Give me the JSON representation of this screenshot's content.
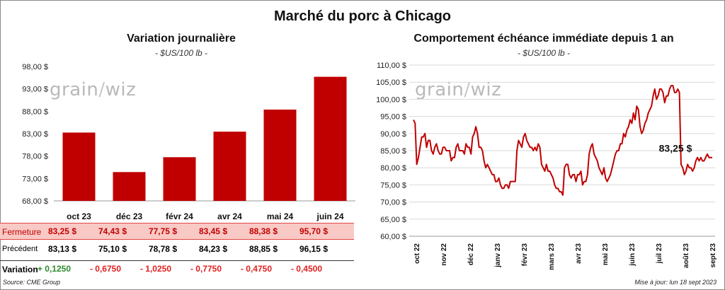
{
  "title": "Marché du porc à Chicago",
  "left": {
    "title": "Variation journalière",
    "unit": "- $US/100 lb -",
    "watermark": "grainwiz"
  },
  "right": {
    "title": "Comportement échéance immédiate depuis 1 an",
    "unit": "- $US/100 lb -",
    "watermark": "grainwiz",
    "last_label": "83,25 $"
  },
  "table": {
    "rows": [
      {
        "label": "Fermeture",
        "values": [
          "83,25 $",
          "74,43 $",
          "77,75 $",
          "83,45 $",
          "88,38 $",
          "95,70 $"
        ]
      },
      {
        "label": "Précédent",
        "values": [
          "83,13 $",
          "75,10 $",
          "78,78 $",
          "84,23 $",
          "88,85 $",
          "96,15 $"
        ]
      },
      {
        "label": "Variation",
        "values": [
          "+ 0,1250",
          "- 0,6750",
          "- 1,0250",
          "- 0,7750",
          "- 0,4750",
          "- 0,4500"
        ]
      }
    ]
  },
  "footer": {
    "source": "Source: CME Group",
    "updated": "Mise à jour: lun 18 sept 2023"
  },
  "colors": {
    "bar": "#c00000",
    "line": "#c00000",
    "positive": "#2e8b2e",
    "negative": "#e02020"
  },
  "chart_data": [
    {
      "type": "bar",
      "categories": [
        "oct 23",
        "déc 23",
        "févr 24",
        "avr 24",
        "mai 24",
        "juin 24"
      ],
      "values": [
        83.25,
        74.43,
        77.75,
        83.45,
        88.38,
        95.7
      ],
      "ylim": [
        68,
        98
      ],
      "yticks": [
        "68,00 $",
        "73,00 $",
        "78,00 $",
        "83,00 $",
        "88,00 $",
        "93,00 $",
        "98,00 $"
      ],
      "grid": false
    },
    {
      "type": "line",
      "ylim": [
        60,
        110
      ],
      "yticks": [
        "60,00 $",
        "65,00 $",
        "70,00 $",
        "75,00 $",
        "80,00 $",
        "85,00 $",
        "90,00 $",
        "95,00 $",
        "100,00 $",
        "105,00 $",
        "110,00 $"
      ],
      "xticks": [
        "oct 22",
        "nov 22",
        "déc 22",
        "janv 23",
        "févr 23",
        "mars 23",
        "avr 23",
        "mai 23",
        "juin 23",
        "juil 23",
        "août 23",
        "sept 23"
      ],
      "grid": true,
      "series": [
        {
          "values": [
            94,
            93,
            81,
            83,
            86,
            89,
            89,
            90,
            86,
            88,
            88,
            85,
            84,
            86,
            87,
            85,
            84,
            84,
            86,
            86,
            85,
            85,
            85,
            82,
            83,
            83,
            86,
            87,
            85,
            85,
            85,
            84,
            87,
            86,
            86,
            84,
            89,
            90,
            92,
            90,
            86,
            86,
            85,
            82,
            80,
            81,
            80,
            79,
            78,
            78,
            76,
            76,
            77,
            75,
            74,
            74,
            75,
            75,
            74,
            76,
            76,
            76,
            76,
            85,
            88,
            87,
            86,
            89,
            90,
            88,
            87,
            86,
            86,
            85,
            86,
            85,
            87,
            86,
            81,
            80,
            79,
            81,
            79,
            79,
            78,
            77,
            75,
            74,
            74,
            73,
            73,
            72,
            80,
            81,
            81,
            78,
            77,
            78,
            78,
            76,
            78,
            78,
            79,
            75,
            76,
            76,
            78,
            84,
            86,
            87,
            84,
            83,
            82,
            80,
            79,
            78,
            80,
            77,
            76,
            77,
            78,
            80,
            82,
            84,
            85,
            85,
            87,
            87,
            90,
            89,
            91,
            92,
            94,
            93,
            96,
            94,
            98,
            97,
            92,
            90,
            91,
            93,
            94,
            96,
            97,
            98,
            101,
            103,
            100,
            101,
            103,
            103,
            102,
            99,
            101,
            101,
            103,
            104,
            104,
            102,
            102,
            103,
            102,
            81,
            80,
            78,
            79,
            81,
            80,
            80,
            79,
            80,
            82,
            83,
            82,
            83,
            82,
            82,
            83,
            84,
            83,
            83,
            83
          ]
        }
      ]
    }
  ]
}
